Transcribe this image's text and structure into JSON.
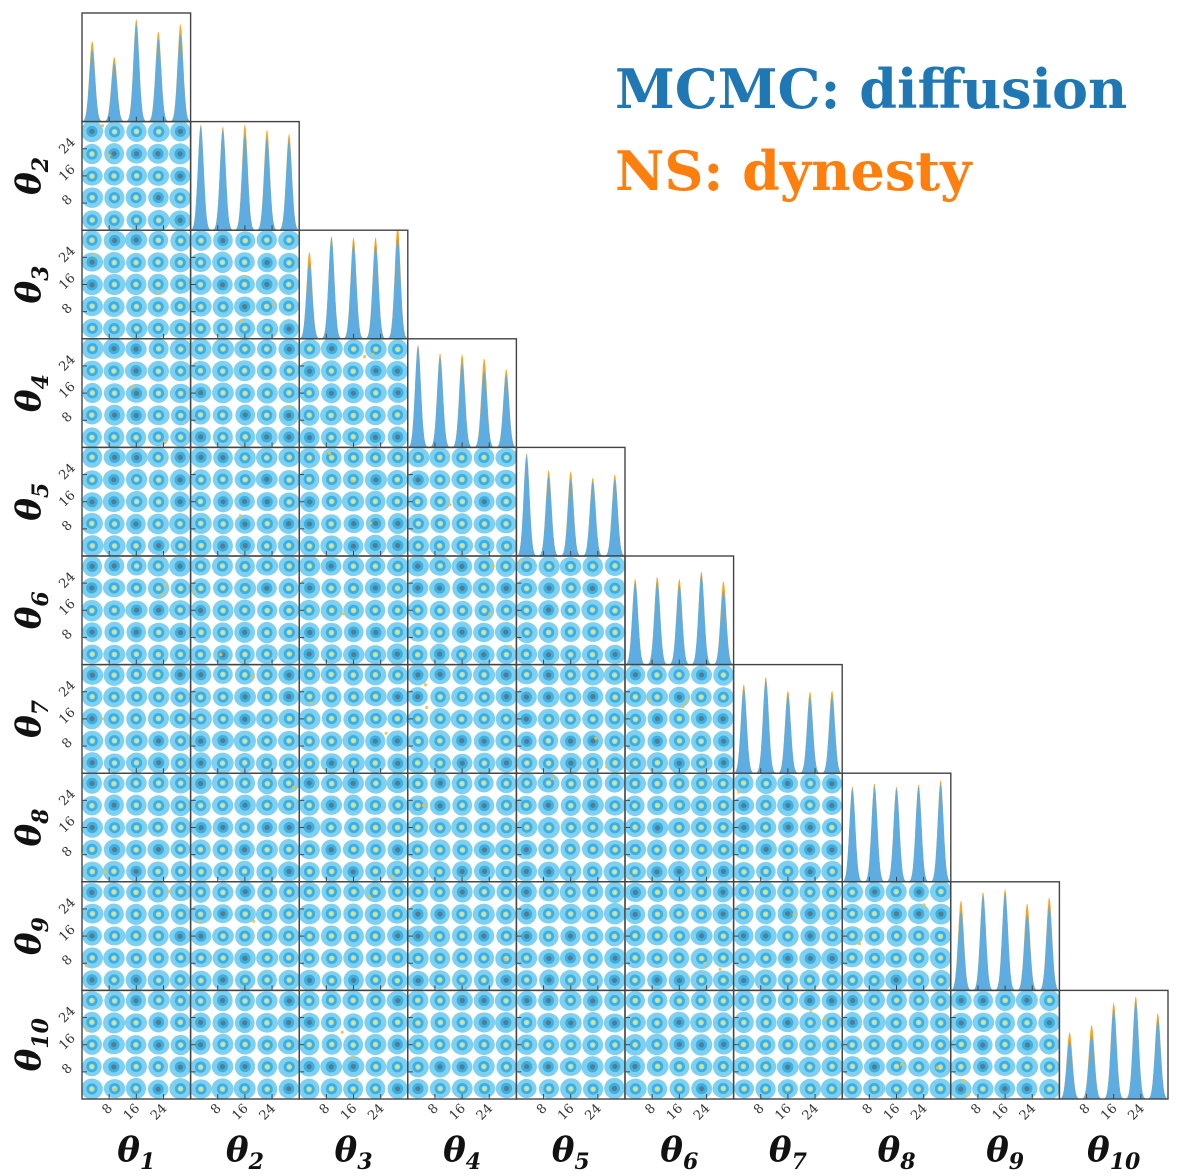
{
  "chart_data": {
    "type": "corner",
    "n_params": 10,
    "params": [
      "θ1",
      "θ2",
      "θ3",
      "θ4",
      "θ5",
      "θ6",
      "θ7",
      "θ8",
      "θ9",
      "θ10"
    ],
    "param_labels": [
      {
        "base": "θ",
        "sub": "1"
      },
      {
        "base": "θ",
        "sub": "2"
      },
      {
        "base": "θ",
        "sub": "3"
      },
      {
        "base": "θ",
        "sub": "4"
      },
      {
        "base": "θ",
        "sub": "5"
      },
      {
        "base": "θ",
        "sub": "6"
      },
      {
        "base": "θ",
        "sub": "7"
      },
      {
        "base": "θ",
        "sub": "8"
      },
      {
        "base": "θ",
        "sub": "9"
      },
      {
        "base": "θ",
        "sub": "10"
      }
    ],
    "ticks": [
      8,
      16,
      24
    ],
    "tick_labels": [
      "8",
      "16",
      "24"
    ],
    "axis_range": [
      0,
      32
    ],
    "mode_locations": [
      3,
      9.5,
      16,
      22.5,
      29
    ],
    "series": [
      {
        "name": "MCMC: diffusion",
        "color": "#1f77b4",
        "fill": "#5dade2"
      },
      {
        "name": "NS: dynesty",
        "color": "#ff7f0e",
        "fill": "#f5a623"
      }
    ],
    "contour_colors": [
      "#7fd0f0",
      "#3ab0e2",
      "#5a7a8c",
      "#e8e070"
    ],
    "legend_position": "top-right",
    "grid": false,
    "peak_heights": [
      [
        0.68,
        0.55,
        0.92,
        0.78,
        0.82
      ],
      [
        0.98,
        0.95,
        0.9,
        0.87,
        0.85
      ],
      [
        0.72,
        0.95,
        0.9,
        0.88,
        0.95
      ],
      [
        0.95,
        0.85,
        0.8,
        0.72,
        0.68
      ],
      [
        0.95,
        0.75,
        0.72,
        0.7,
        0.72
      ],
      [
        0.78,
        0.78,
        0.75,
        0.85,
        0.7
      ],
      [
        0.8,
        0.88,
        0.74,
        0.72,
        0.72
      ],
      [
        0.88,
        0.9,
        0.88,
        0.9,
        0.92
      ],
      [
        0.75,
        0.9,
        0.92,
        0.72,
        0.8
      ],
      [
        0.55,
        0.6,
        0.85,
        0.92,
        0.75
      ]
    ],
    "ns_excess": [
      [
        0.08,
        0.06,
        0.05,
        0.07,
        0.1
      ],
      [
        0.02,
        0.03,
        0.1,
        0.08,
        0.06
      ],
      [
        0.1,
        0.02,
        0.06,
        0.08,
        0.12
      ],
      [
        0.02,
        0.04,
        0.08,
        0.12,
        0.06
      ],
      [
        0.02,
        0.06,
        0.08,
        0.04,
        0.05
      ],
      [
        0.03,
        0.05,
        0.06,
        0.03,
        0.09
      ],
      [
        0.04,
        0.03,
        0.04,
        0.05,
        0.06
      ],
      [
        0.02,
        0.03,
        0.02,
        0.02,
        0.04
      ],
      [
        0.1,
        0.03,
        0.04,
        0.1,
        0.08
      ],
      [
        0.08,
        0.1,
        0.06,
        0.05,
        0.06
      ]
    ]
  }
}
